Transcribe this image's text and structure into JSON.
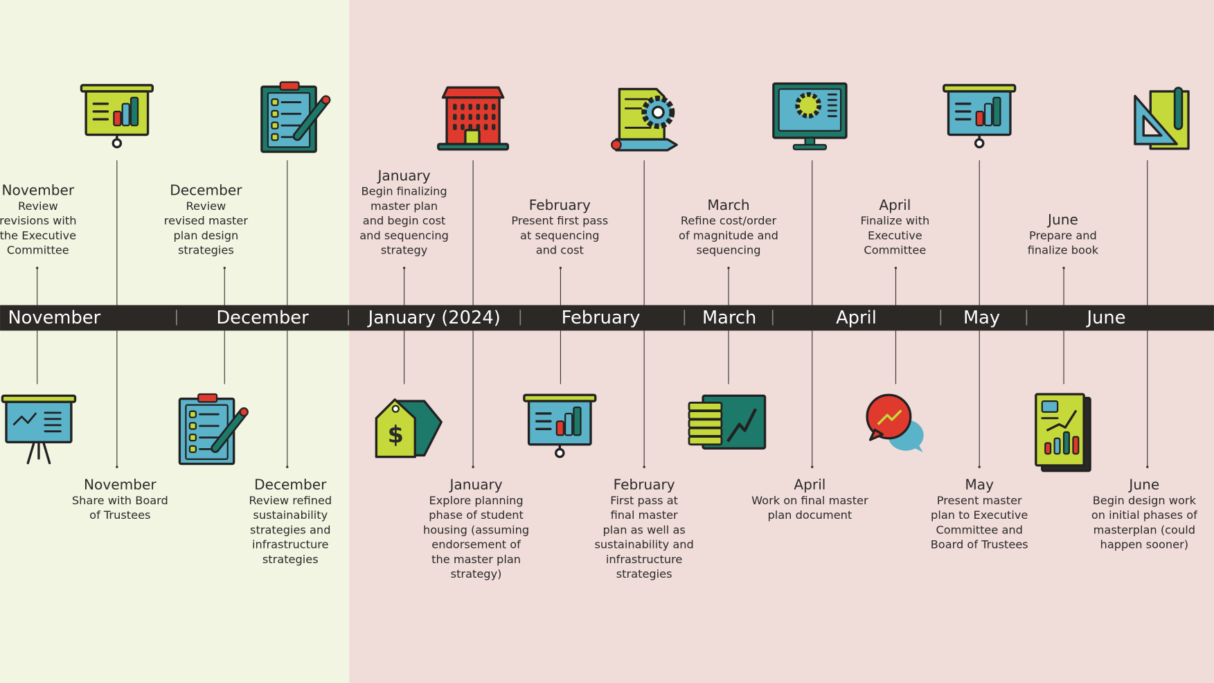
{
  "timeline": {
    "bands": [
      "November",
      "December",
      "January (2024)",
      "February",
      "March",
      "April",
      "May",
      "June"
    ],
    "top_events": [
      {
        "heading": "November",
        "lines": [
          "Review",
          "revisions with",
          "the Executive",
          "Committee"
        ]
      },
      {
        "heading": "December",
        "lines": [
          "Review",
          "revised master",
          "plan design",
          "strategies"
        ]
      },
      {
        "heading": "January",
        "lines": [
          "Begin finalizing",
          "master plan",
          "and begin cost",
          "and sequencing",
          "strategy"
        ]
      },
      {
        "heading": "February",
        "lines": [
          "Present first pass",
          "at sequencing",
          "and cost"
        ]
      },
      {
        "heading": "March",
        "lines": [
          "Refine cost/order",
          "of magnitude and",
          "sequencing"
        ]
      },
      {
        "heading": "April",
        "lines": [
          "Finalize with",
          "Executive",
          "Committee"
        ]
      },
      {
        "heading": "June",
        "lines": [
          "Prepare and",
          "finalize book"
        ]
      }
    ],
    "bottom_events": [
      {
        "heading": "November",
        "lines": [
          "Share with Board",
          "of Trustees"
        ]
      },
      {
        "heading": "December",
        "lines": [
          "Review refined",
          "sustainability",
          "strategies and",
          "infrastructure",
          "strategies"
        ]
      },
      {
        "heading": "January",
        "lines": [
          "Explore planning",
          "phase of student",
          "housing (assuming",
          "endorsement of",
          "the master plan",
          "strategy)"
        ]
      },
      {
        "heading": "February",
        "lines": [
          "First pass at",
          "final master",
          "plan as well as",
          "sustainability and",
          "infrastructure",
          "strategies"
        ]
      },
      {
        "heading": "April",
        "lines": [
          "Work on final master",
          "plan document"
        ]
      },
      {
        "heading": "May",
        "lines": [
          "Present master",
          "plan to Executive",
          "Committee and",
          "Board of Trustees"
        ]
      },
      {
        "heading": "June",
        "lines": [
          "Begin design work",
          "on initial phases of",
          "masterplan (could",
          "happen sooner)"
        ]
      }
    ]
  }
}
